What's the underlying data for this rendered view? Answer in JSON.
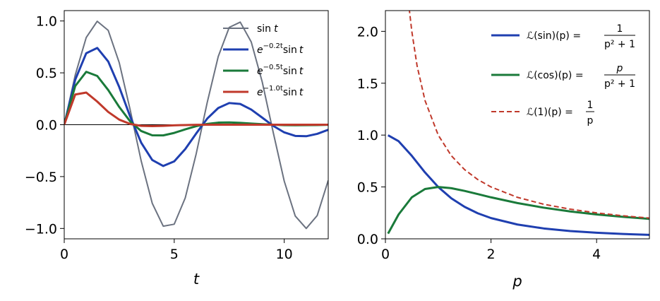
{
  "colors": {
    "sin": "#6b7280",
    "damped_0_2": "#1f3fb0",
    "damped_0_5": "#1a7a3a",
    "damped_1_0": "#c0392b",
    "laplace_sin": "#1f3fb0",
    "laplace_cos": "#1a7a3a",
    "laplace_one": "#c0392b",
    "axis": "#000000"
  },
  "chart_data": [
    {
      "type": "line",
      "xlabel": "t",
      "ylabel": "",
      "xlim": [
        0,
        12
      ],
      "ylim": [
        -1.1,
        1.1
      ],
      "xticks": [
        "0",
        "5",
        "10"
      ],
      "xtick_values": [
        0,
        5,
        10
      ],
      "yticks": [
        "1.0",
        "0.5",
        "0.0",
        "−0.5",
        "−1.0"
      ],
      "ytick_values": [
        1.0,
        0.5,
        0.0,
        -0.5,
        -1.0
      ],
      "grid": false,
      "legend_position": "top-right",
      "x": [
        0,
        0.5,
        1,
        1.5,
        2,
        2.5,
        3,
        3.5,
        4,
        4.5,
        5,
        5.5,
        6,
        6.5,
        7,
        7.5,
        8,
        8.5,
        9,
        9.5,
        10,
        10.5,
        11,
        11.5,
        12
      ],
      "series": [
        {
          "name": "sin t",
          "legend_parts": [
            "sin",
            "t"
          ],
          "color": "#6b7280",
          "width": 2,
          "values": [
            0,
            0.479,
            0.841,
            0.997,
            0.909,
            0.598,
            0.141,
            -0.351,
            -0.757,
            -0.978,
            -0.959,
            -0.706,
            -0.279,
            0.215,
            0.657,
            0.938,
            0.989,
            0.798,
            0.412,
            -0.075,
            -0.544,
            -0.88,
            -1.0,
            -0.875,
            -0.537
          ]
        },
        {
          "name": "e^{-0.2t} sin t",
          "legend_parts": [
            "e",
            "−0.2t",
            "sin",
            "t"
          ],
          "color": "#1f3fb0",
          "width": 3,
          "values": [
            0,
            0.434,
            0.689,
            0.74,
            0.609,
            0.363,
            0.077,
            -0.174,
            -0.34,
            -0.398,
            -0.353,
            -0.235,
            -0.084,
            0.059,
            0.161,
            0.209,
            0.2,
            0.146,
            0.068,
            -0.011,
            -0.074,
            -0.108,
            -0.111,
            -0.088,
            -0.049
          ]
        },
        {
          "name": "e^{-0.5t} sin t",
          "legend_parts": [
            "e",
            "−0.5t",
            "sin",
            "t"
          ],
          "color": "#1a7a3a",
          "width": 3,
          "values": [
            0,
            0.373,
            0.51,
            0.47,
            0.334,
            0.171,
            0.031,
            -0.061,
            -0.102,
            -0.103,
            -0.079,
            -0.045,
            -0.014,
            0.008,
            0.02,
            0.022,
            0.018,
            0.011,
            0.005,
            0,
            -0.004,
            -0.005,
            -0.004,
            -0.003,
            -0.001
          ]
        },
        {
          "name": "e^{-1.0t} sin t",
          "legend_parts": [
            "e",
            "−1.0t",
            "sin",
            "t"
          ],
          "color": "#c0392b",
          "width": 3,
          "values": [
            0,
            0.291,
            0.31,
            0.223,
            0.123,
            0.049,
            0.007,
            -0.011,
            -0.014,
            -0.011,
            -0.006,
            -0.003,
            -0.001,
            0,
            0,
            0,
            0,
            0,
            0,
            0,
            0,
            0,
            0,
            0,
            0
          ]
        }
      ]
    },
    {
      "type": "line",
      "xlabel": "p",
      "ylabel": "",
      "xlim": [
        0,
        5
      ],
      "ylim": [
        0,
        2.2
      ],
      "xticks": [
        "0",
        "2",
        "4"
      ],
      "xtick_values": [
        0,
        2,
        4
      ],
      "yticks": [
        "2.0",
        "1.5",
        "1.0",
        "0.5",
        "0.0"
      ],
      "ytick_values": [
        2.0,
        1.5,
        1.0,
        0.5,
        0.0
      ],
      "grid": false,
      "legend_position": "top-right",
      "x": [
        0.05,
        0.25,
        0.5,
        0.75,
        1,
        1.25,
        1.5,
        1.75,
        2,
        2.5,
        3,
        3.5,
        4,
        4.5,
        5
      ],
      "series": [
        {
          "name": "L(sin)(p) = 1/(p^2+1)",
          "legend_lhs": "ℒ(sin)(p) =",
          "legend_num": "1",
          "legend_den": "p² + 1",
          "color": "#1f3fb0",
          "width": 3,
          "dash": "",
          "values": [
            0.998,
            0.941,
            0.8,
            0.64,
            0.5,
            0.39,
            0.308,
            0.246,
            0.2,
            0.138,
            0.1,
            0.075,
            0.059,
            0.047,
            0.038
          ]
        },
        {
          "name": "L(cos)(p) = p/(p^2+1)",
          "legend_lhs": "ℒ(cos)(p) =",
          "legend_num": "p",
          "legend_den": "p² + 1",
          "color": "#1a7a3a",
          "width": 3,
          "dash": "",
          "values": [
            0.05,
            0.235,
            0.4,
            0.48,
            0.5,
            0.488,
            0.462,
            0.431,
            0.4,
            0.345,
            0.3,
            0.264,
            0.235,
            0.212,
            0.192
          ]
        },
        {
          "name": "L(1)(p) = 1/p",
          "legend_lhs": "ℒ(1)(p) =",
          "legend_num": "1",
          "legend_den": "p",
          "color": "#c0392b",
          "width": 2,
          "dash": "7,4",
          "x": [
            0.45,
            0.5,
            0.6,
            0.75,
            1,
            1.25,
            1.5,
            1.75,
            2,
            2.5,
            3,
            3.5,
            4,
            4.5,
            5
          ],
          "values": [
            2.222,
            2.0,
            1.667,
            1.333,
            1.0,
            0.8,
            0.667,
            0.571,
            0.5,
            0.4,
            0.333,
            0.286,
            0.25,
            0.222,
            0.2
          ]
        }
      ]
    }
  ]
}
